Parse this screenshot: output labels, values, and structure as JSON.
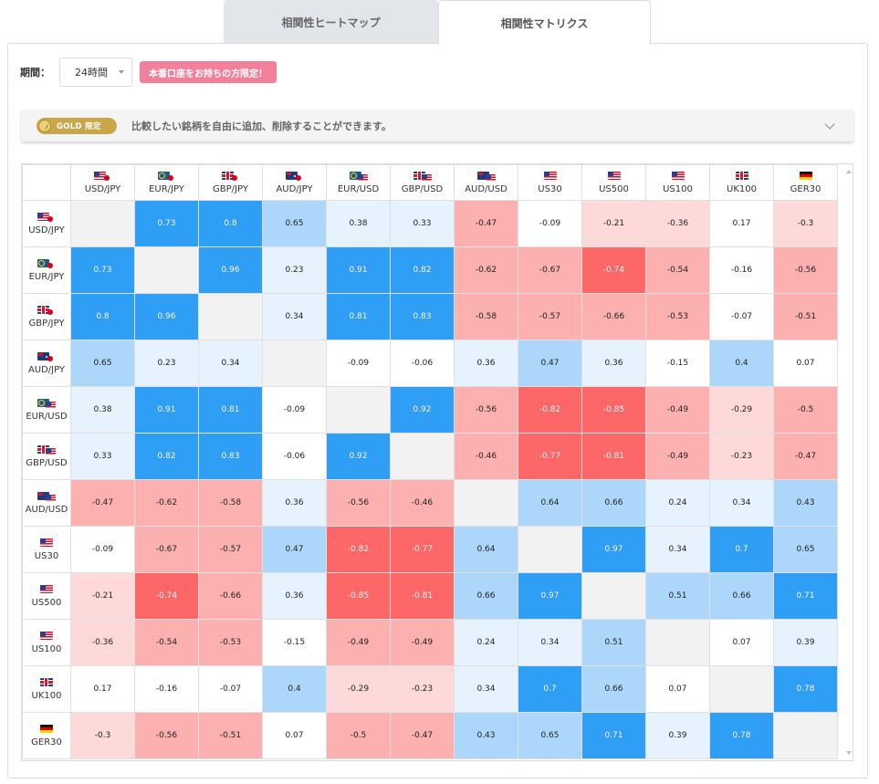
{
  "tabs": [
    {
      "label": "相関性ヒートマップ",
      "active": false
    },
    {
      "label": "相関性マトリクス",
      "active": true
    }
  ],
  "period": {
    "label": "期間：",
    "selected": "24時間",
    "badge": "本番口座をお持ちの方限定！"
  },
  "gold_bar": {
    "badge": "GOLD 限定",
    "description": "比較したい銘柄を自由に追加、削除することができます。"
  },
  "colors": {
    "strong_pos": "#2f9ff5",
    "mid_pos": "#acd7fb",
    "weak_pos": "#e6f2fd",
    "strong_neg": "#fd6767",
    "mid_neg": "#fdb0b0",
    "weak_neg": "#fdd9d9",
    "neutral": "#ffffff",
    "diag": "#f2f2f2"
  },
  "symbols": [
    {
      "name": "USD/JPY",
      "flags": [
        "us",
        "jp"
      ]
    },
    {
      "name": "EUR/JPY",
      "flags": [
        "eu",
        "jp"
      ]
    },
    {
      "name": "GBP/JPY",
      "flags": [
        "gb",
        "jp"
      ]
    },
    {
      "name": "AUD/JPY",
      "flags": [
        "au",
        "jp"
      ]
    },
    {
      "name": "EUR/USD",
      "flags": [
        "eu",
        "us"
      ]
    },
    {
      "name": "GBP/USD",
      "flags": [
        "gb",
        "us"
      ]
    },
    {
      "name": "AUD/USD",
      "flags": [
        "au",
        "us"
      ]
    },
    {
      "name": "US30",
      "flags": [
        "us"
      ]
    },
    {
      "name": "US500",
      "flags": [
        "us"
      ]
    },
    {
      "name": "US100",
      "flags": [
        "us"
      ]
    },
    {
      "name": "UK100",
      "flags": [
        "gb"
      ]
    },
    {
      "name": "GER30",
      "flags": [
        "de"
      ]
    }
  ],
  "matrix": [
    [
      null,
      "0.73",
      "0.8",
      "0.65",
      "0.38",
      "0.33",
      "-0.47",
      "-0.09",
      "-0.21",
      "-0.36",
      "0.17",
      "-0.3"
    ],
    [
      "0.73",
      null,
      "0.96",
      "0.23",
      "0.91",
      "0.82",
      "-0.62",
      "-0.67",
      "-0.74",
      "-0.54",
      "-0.16",
      "-0.56"
    ],
    [
      "0.8",
      "0.96",
      null,
      "0.34",
      "0.81",
      "0.83",
      "-0.58",
      "-0.57",
      "-0.66",
      "-0.53",
      "-0.07",
      "-0.51"
    ],
    [
      "0.65",
      "0.23",
      "0.34",
      null,
      "-0.09",
      "-0.06",
      "0.36",
      "0.47",
      "0.36",
      "-0.15",
      "0.4",
      "0.07"
    ],
    [
      "0.38",
      "0.91",
      "0.81",
      "-0.09",
      null,
      "0.92",
      "-0.56",
      "-0.82",
      "-0.85",
      "-0.49",
      "-0.29",
      "-0.5"
    ],
    [
      "0.33",
      "0.82",
      "0.83",
      "-0.06",
      "0.92",
      null,
      "-0.46",
      "-0.77",
      "-0.81",
      "-0.49",
      "-0.23",
      "-0.47"
    ],
    [
      "-0.47",
      "-0.62",
      "-0.58",
      "0.36",
      "-0.56",
      "-0.46",
      null,
      "0.64",
      "0.66",
      "0.24",
      "0.34",
      "0.43"
    ],
    [
      "-0.09",
      "-0.67",
      "-0.57",
      "0.47",
      "-0.82",
      "-0.77",
      "0.64",
      null,
      "0.97",
      "0.34",
      "0.7",
      "0.65"
    ],
    [
      "-0.21",
      "-0.74",
      "-0.66",
      "0.36",
      "-0.85",
      "-0.81",
      "0.66",
      "0.97",
      null,
      "0.51",
      "0.66",
      "0.71"
    ],
    [
      "-0.36",
      "-0.54",
      "-0.53",
      "-0.15",
      "-0.49",
      "-0.49",
      "0.24",
      "0.34",
      "0.51",
      null,
      "0.07",
      "0.39"
    ],
    [
      "0.17",
      "-0.16",
      "-0.07",
      "0.4",
      "-0.29",
      "-0.23",
      "0.34",
      "0.7",
      "0.66",
      "0.07",
      null,
      "0.78"
    ],
    [
      "-0.3",
      "-0.56",
      "-0.51",
      "0.07",
      "-0.5",
      "-0.47",
      "0.43",
      "0.65",
      "0.71",
      "0.39",
      "0.78",
      null
    ]
  ]
}
